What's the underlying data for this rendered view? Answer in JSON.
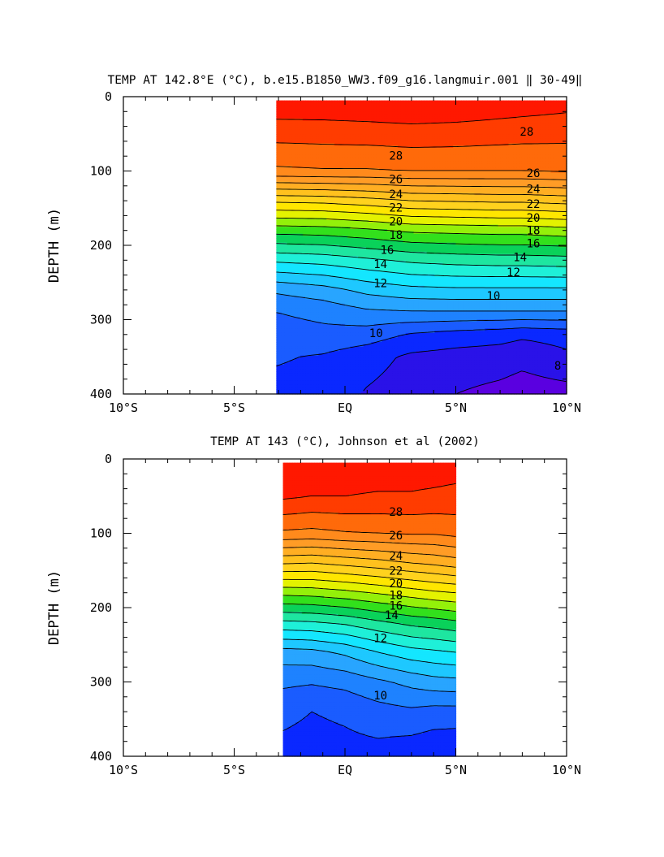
{
  "chart_data": [
    {
      "type": "contour",
      "title": "TEMP AT 142.8°E (°C), b.e15.B1850_WW3.f09_g16.langmuir.001 ‖ 30-49‖",
      "ylabel": "DEPTH (m)",
      "xlabel": "",
      "xlim": [
        -10,
        10
      ],
      "ylim": [
        400,
        0
      ],
      "xticks": [
        -10,
        -5,
        0,
        5,
        10
      ],
      "xtick_labels": [
        "10°S",
        "5°S",
        "EQ",
        "5°N",
        "10°N"
      ],
      "yticks": [
        0,
        100,
        200,
        300,
        400
      ],
      "ytick_labels": [
        "0",
        "100",
        "200",
        "300",
        "400"
      ],
      "data_xrange": [
        -3.1,
        10
      ],
      "data_yrange": [
        5,
        400
      ],
      "x": [
        -3.1,
        -1,
        1,
        3,
        5,
        7,
        8,
        10
      ],
      "depths": [
        5,
        100,
        140,
        180,
        220,
        260,
        290,
        320,
        350,
        400
      ],
      "temperature": [
        [
          29.8,
          29.8,
          29.9,
          30.0,
          29.9,
          29.7,
          29.6,
          29.4
        ],
        [
          26.8,
          26.9,
          26.9,
          27.0,
          27.0,
          27.0,
          27.0,
          27.1
        ],
        [
          22.2,
          22.3,
          22.6,
          23.0,
          23.1,
          23.2,
          23.2,
          23.4
        ],
        [
          18.4,
          18.5,
          18.8,
          19.2,
          19.3,
          19.4,
          19.4,
          19.6
        ],
        [
          15.2,
          15.4,
          15.8,
          16.2,
          16.4,
          16.5,
          16.5,
          16.6
        ],
        [
          12.2,
          12.6,
          13.3,
          13.7,
          13.8,
          13.8,
          13.8,
          13.8
        ],
        [
          11.0,
          11.3,
          11.8,
          11.9,
          11.9,
          11.9,
          11.9,
          11.9
        ],
        [
          10.5,
          10.7,
          10.5,
          9.9,
          9.6,
          9.4,
          9.2,
          9.4
        ],
        [
          10.1,
          9.9,
          9.4,
          8.8,
          8.6,
          8.5,
          8.3,
          8.8
        ],
        [
          9.7,
          9.6,
          8.9,
          8.5,
          8.0,
          7.7,
          7.5,
          7.6
        ]
      ],
      "contour_levels": [
        8,
        9,
        10,
        11,
        12,
        13,
        14,
        15,
        16,
        17,
        18,
        19,
        20,
        21,
        22,
        23,
        24,
        25,
        26,
        27,
        28,
        29,
        30
      ],
      "contour_labels": [
        {
          "text": "28",
          "x": 2.3,
          "depth": 79
        },
        {
          "text": "28",
          "x": 8.2,
          "depth": 47
        },
        {
          "text": "26",
          "x": 2.3,
          "depth": 111
        },
        {
          "text": "26",
          "x": 8.5,
          "depth": 103
        },
        {
          "text": "24",
          "x": 2.3,
          "depth": 131
        },
        {
          "text": "24",
          "x": 8.5,
          "depth": 124
        },
        {
          "text": "22",
          "x": 2.3,
          "depth": 149
        },
        {
          "text": "22",
          "x": 8.5,
          "depth": 144
        },
        {
          "text": "20",
          "x": 2.3,
          "depth": 168
        },
        {
          "text": "20",
          "x": 8.5,
          "depth": 163
        },
        {
          "text": "18",
          "x": 2.3,
          "depth": 186
        },
        {
          "text": "18",
          "x": 8.5,
          "depth": 180
        },
        {
          "text": "16",
          "x": 1.9,
          "depth": 206
        },
        {
          "text": "16",
          "x": 8.5,
          "depth": 197
        },
        {
          "text": "14",
          "x": 1.6,
          "depth": 225
        },
        {
          "text": "14",
          "x": 7.9,
          "depth": 216
        },
        {
          "text": "12",
          "x": 1.6,
          "depth": 251
        },
        {
          "text": "12",
          "x": 7.6,
          "depth": 236
        },
        {
          "text": "10",
          "x": 1.4,
          "depth": 318
        },
        {
          "text": "10",
          "x": 6.7,
          "depth": 268
        },
        {
          "text": "8",
          "x": 9.6,
          "depth": 362
        }
      ]
    },
    {
      "type": "contour",
      "title": "TEMP AT 143 (°C), Johnson et al (2002)",
      "ylabel": "DEPTH (m)",
      "xlabel": "",
      "xlim": [
        -10,
        10
      ],
      "ylim": [
        400,
        0
      ],
      "xticks": [
        -10,
        -5,
        0,
        5,
        10
      ],
      "xtick_labels": [
        "10°S",
        "5°S",
        "EQ",
        "5°N",
        "10°N"
      ],
      "yticks": [
        0,
        100,
        200,
        300,
        400
      ],
      "ytick_labels": [
        "0",
        "100",
        "200",
        "300",
        "400"
      ],
      "data_xrange": [
        -2.8,
        5
      ],
      "data_yrange": [
        5,
        400
      ],
      "x": [
        -2.8,
        -1.5,
        0,
        1.5,
        3,
        4,
        5
      ],
      "depths": [
        5,
        50,
        100,
        140,
        180,
        220,
        260,
        300,
        340,
        400
      ],
      "temperature": [
        [
          29.7,
          29.6,
          29.6,
          29.6,
          29.6,
          29.6,
          29.5
        ],
        [
          29.2,
          29.0,
          29.0,
          28.9,
          28.9,
          28.8,
          28.7
        ],
        [
          26.8,
          26.7,
          26.9,
          27.0,
          27.1,
          27.1,
          27.3
        ],
        [
          23.1,
          23.0,
          23.3,
          23.6,
          24.0,
          24.2,
          24.5
        ],
        [
          19.3,
          19.4,
          19.7,
          20.1,
          20.5,
          20.8,
          21.0
        ],
        [
          15.8,
          15.9,
          16.2,
          16.8,
          17.3,
          17.5,
          17.8
        ],
        [
          12.6,
          12.7,
          13.2,
          14.0,
          14.6,
          14.8,
          15.0
        ],
        [
          11.2,
          11.1,
          11.3,
          11.8,
          12.3,
          12.6,
          12.7
        ],
        [
          10.3,
          10.0,
          10.2,
          10.6,
          10.8,
          10.6,
          10.6
        ],
        [
          9.6,
          9.5,
          9.6,
          9.6,
          9.3,
          9.1,
          9.0
        ]
      ],
      "contour_levels": [
        8,
        9,
        10,
        11,
        12,
        13,
        14,
        15,
        16,
        17,
        18,
        19,
        20,
        21,
        22,
        23,
        24,
        25,
        26,
        27,
        28,
        29,
        30
      ],
      "contour_labels": [
        {
          "text": "28",
          "x": 2.3,
          "depth": 71
        },
        {
          "text": "26",
          "x": 2.3,
          "depth": 103
        },
        {
          "text": "24",
          "x": 2.3,
          "depth": 130
        },
        {
          "text": "22",
          "x": 2.3,
          "depth": 150
        },
        {
          "text": "20",
          "x": 2.3,
          "depth": 167
        },
        {
          "text": "18",
          "x": 2.3,
          "depth": 183
        },
        {
          "text": "16",
          "x": 2.3,
          "depth": 197
        },
        {
          "text": "14",
          "x": 2.1,
          "depth": 210
        },
        {
          "text": "12",
          "x": 1.6,
          "depth": 241
        },
        {
          "text": "10",
          "x": 1.6,
          "depth": 318
        }
      ]
    }
  ]
}
